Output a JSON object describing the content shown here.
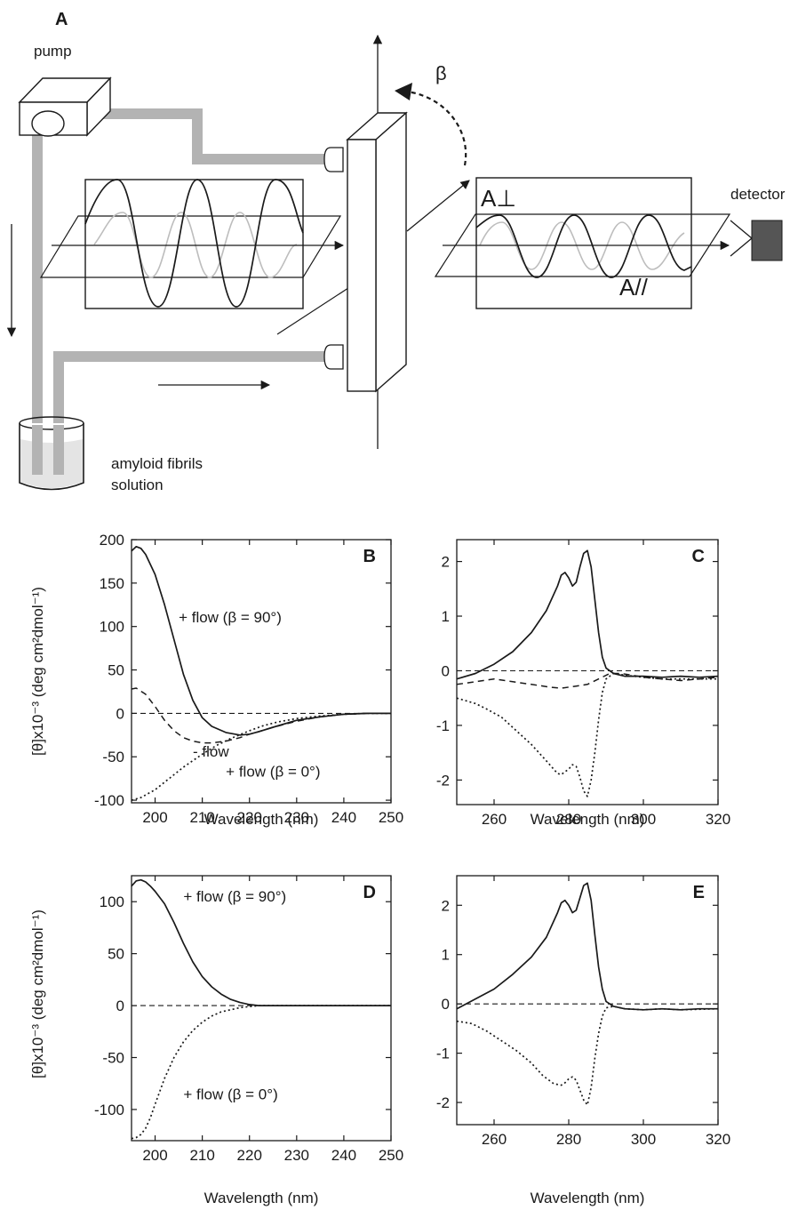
{
  "diagram": {
    "panel_label": "A",
    "pump_label": "pump",
    "detector_label": "detector",
    "beta_label": "β",
    "a_perp_label": "A⊥",
    "a_par_label": "A//",
    "solution_label_line1": "amyloid fibrils",
    "solution_label_line2": "solution"
  },
  "colors": {
    "tube": "#b3b3b3",
    "ink": "#1a1a1a",
    "light_wave": "#bdbdbd",
    "detector": "#555555"
  },
  "chart_data": [
    {
      "id": "B",
      "type": "line",
      "panel_label": "B",
      "xlabel": "Wavelength (nm)",
      "ylabel": "[θ]x10⁻³ (deg cm²dmol⁻¹)",
      "xlim": [
        195,
        250
      ],
      "ylim": [
        -103,
        200
      ],
      "xticks": [
        200,
        210,
        220,
        230,
        240,
        250
      ],
      "yticks": [
        -100,
        -50,
        0,
        50,
        100,
        150,
        200
      ],
      "grid": false,
      "annotations": [
        {
          "text": "+ flow (β = 90°)",
          "x": 205,
          "y": 105
        },
        {
          "text": "- flow",
          "x": 208,
          "y": -50
        },
        {
          "text": "+ flow (β = 0°)",
          "x": 215,
          "y": -73
        }
      ],
      "series": [
        {
          "style": "solid",
          "x": [
            195,
            196,
            197,
            198,
            200,
            202,
            204,
            206,
            208,
            210,
            212,
            215,
            218,
            220,
            222,
            225,
            230,
            235,
            240,
            245,
            250
          ],
          "y": [
            187,
            192,
            190,
            183,
            160,
            125,
            85,
            45,
            15,
            -5,
            -15,
            -22,
            -25,
            -24,
            -21,
            -16,
            -8,
            -4,
            -1,
            0,
            0
          ]
        },
        {
          "style": "dashed",
          "x": [
            195,
            196,
            198,
            200,
            202,
            204,
            206,
            208,
            210,
            212,
            215,
            218,
            220,
            222,
            225,
            230,
            235,
            240,
            245,
            250
          ],
          "y": [
            28,
            29,
            22,
            8,
            -8,
            -20,
            -28,
            -32,
            -34,
            -34,
            -32,
            -28,
            -24,
            -21,
            -16,
            -9,
            -4,
            -1,
            0,
            0
          ]
        },
        {
          "style": "dotted",
          "x": [
            195,
            197,
            200,
            203,
            206,
            210,
            213,
            216,
            220,
            223,
            226,
            230,
            235,
            240,
            245,
            250
          ],
          "y": [
            -100,
            -97,
            -88,
            -75,
            -62,
            -47,
            -37,
            -29,
            -20,
            -14,
            -10,
            -6,
            -3,
            -1,
            0,
            0
          ]
        },
        {
          "style": "baseline",
          "x": [
            195,
            250
          ],
          "y": [
            0,
            0
          ]
        }
      ]
    },
    {
      "id": "C",
      "type": "line",
      "panel_label": "C",
      "xlabel": "Wavelength (nm)",
      "ylabel": "",
      "xlim": [
        250,
        320
      ],
      "ylim": [
        -2.45,
        2.4
      ],
      "xticks": [
        260,
        280,
        300,
        320
      ],
      "yticks": [
        -2,
        -1,
        0,
        1,
        2
      ],
      "grid": false,
      "annotations": [],
      "series": [
        {
          "style": "solid",
          "x": [
            250,
            255,
            260,
            265,
            270,
            274,
            277,
            278,
            279,
            280,
            281,
            282,
            283,
            284,
            285,
            286,
            287,
            288,
            289,
            290,
            292,
            295,
            300,
            305,
            310,
            315,
            320
          ],
          "y": [
            -0.15,
            -0.05,
            0.12,
            0.35,
            0.7,
            1.1,
            1.55,
            1.75,
            1.8,
            1.7,
            1.55,
            1.62,
            1.9,
            2.15,
            2.2,
            1.9,
            1.3,
            0.7,
            0.25,
            0.05,
            -0.05,
            -0.1,
            -0.1,
            -0.12,
            -0.1,
            -0.12,
            -0.1
          ]
        },
        {
          "style": "dashed",
          "x": [
            250,
            255,
            260,
            265,
            270,
            275,
            278,
            282,
            285,
            288,
            291,
            294,
            297,
            300,
            305,
            310,
            315,
            320
          ],
          "y": [
            -0.25,
            -0.2,
            -0.15,
            -0.2,
            -0.25,
            -0.3,
            -0.32,
            -0.28,
            -0.25,
            -0.15,
            -0.05,
            -0.05,
            -0.08,
            -0.12,
            -0.15,
            -0.18,
            -0.15,
            -0.12
          ]
        },
        {
          "style": "dotted",
          "x": [
            250,
            255,
            258,
            262,
            266,
            270,
            274,
            277,
            278,
            279,
            280,
            281,
            282,
            283,
            284,
            285,
            286,
            287,
            288,
            289,
            290,
            292,
            295,
            300,
            305,
            310,
            320
          ],
          "y": [
            -0.5,
            -0.6,
            -0.7,
            -0.85,
            -1.1,
            -1.35,
            -1.65,
            -1.88,
            -1.9,
            -1.85,
            -1.8,
            -1.72,
            -1.75,
            -1.95,
            -2.2,
            -2.3,
            -2.0,
            -1.5,
            -0.9,
            -0.4,
            -0.15,
            -0.05,
            -0.08,
            -0.12,
            -0.15,
            -0.15,
            -0.15
          ]
        },
        {
          "style": "baseline",
          "x": [
            250,
            320
          ],
          "y": [
            0,
            0
          ]
        }
      ]
    },
    {
      "id": "D",
      "type": "line",
      "panel_label": "D",
      "xlabel": "Wavelength (nm)",
      "ylabel": "[θ]x10⁻³ (deg cm²dmol⁻¹)",
      "xlim": [
        195,
        250
      ],
      "ylim": [
        -130,
        125
      ],
      "xticks": [
        200,
        210,
        220,
        230,
        240,
        250
      ],
      "yticks": [
        -100,
        -50,
        0,
        50,
        100
      ],
      "grid": false,
      "annotations": [
        {
          "text": "+ flow (β = 90°)",
          "x": 206,
          "y": 100
        },
        {
          "text": "+ flow (β = 0°)",
          "x": 206,
          "y": -90
        }
      ],
      "series": [
        {
          "style": "solid",
          "x": [
            195,
            196,
            197,
            198,
            199,
            200,
            202,
            204,
            206,
            208,
            210,
            212,
            214,
            216,
            218,
            220,
            222,
            225,
            230,
            235,
            240,
            245,
            250
          ],
          "y": [
            115,
            120,
            121,
            119,
            115,
            110,
            98,
            80,
            60,
            42,
            28,
            18,
            11,
            6,
            3,
            1,
            0,
            0,
            0,
            0,
            0,
            0,
            0
          ]
        },
        {
          "style": "dotted",
          "x": [
            195,
            196,
            197,
            198,
            199,
            200,
            202,
            204,
            206,
            208,
            210,
            212,
            214,
            216,
            218,
            220,
            222,
            225,
            230,
            235,
            240,
            245,
            250
          ],
          "y": [
            -128,
            -127,
            -124,
            -118,
            -108,
            -95,
            -70,
            -50,
            -35,
            -24,
            -16,
            -10,
            -6,
            -4,
            -2,
            -1,
            0,
            0,
            0,
            0,
            0,
            0,
            0
          ]
        },
        {
          "style": "baseline",
          "x": [
            195,
            250
          ],
          "y": [
            0,
            0
          ]
        }
      ]
    },
    {
      "id": "E",
      "type": "line",
      "panel_label": "E",
      "xlabel": "Wavelength (nm)",
      "ylabel": "",
      "xlim": [
        250,
        320
      ],
      "ylim": [
        -2.45,
        2.6
      ],
      "xticks": [
        260,
        280,
        300,
        320
      ],
      "yticks": [
        -2,
        -1,
        0,
        1,
        2
      ],
      "grid": false,
      "annotations": [],
      "series": [
        {
          "style": "solid",
          "x": [
            250,
            255,
            260,
            265,
            270,
            274,
            277,
            278,
            279,
            280,
            281,
            282,
            283,
            284,
            285,
            286,
            287,
            288,
            289,
            290,
            292,
            295,
            300,
            305,
            310,
            315,
            320
          ],
          "y": [
            -0.1,
            0.1,
            0.3,
            0.6,
            0.95,
            1.35,
            1.85,
            2.05,
            2.1,
            2.0,
            1.85,
            1.9,
            2.15,
            2.4,
            2.45,
            2.1,
            1.4,
            0.75,
            0.3,
            0.05,
            -0.05,
            -0.1,
            -0.12,
            -0.1,
            -0.12,
            -0.1,
            -0.1
          ]
        },
        {
          "style": "dotted",
          "x": [
            250,
            254,
            258,
            262,
            266,
            270,
            273,
            276,
            278,
            279,
            280,
            281,
            282,
            283,
            284,
            285,
            286,
            287,
            288,
            289,
            290,
            292,
            295,
            300,
            305,
            310,
            320
          ],
          "y": [
            -0.35,
            -0.4,
            -0.55,
            -0.75,
            -0.95,
            -1.2,
            -1.45,
            -1.62,
            -1.65,
            -1.6,
            -1.52,
            -1.48,
            -1.55,
            -1.75,
            -1.95,
            -2.05,
            -1.7,
            -1.1,
            -0.6,
            -0.25,
            -0.08,
            -0.05,
            -0.1,
            -0.12,
            -0.1,
            -0.12,
            -0.1
          ]
        },
        {
          "style": "baseline",
          "x": [
            250,
            320
          ],
          "y": [
            0,
            0
          ]
        }
      ]
    }
  ]
}
